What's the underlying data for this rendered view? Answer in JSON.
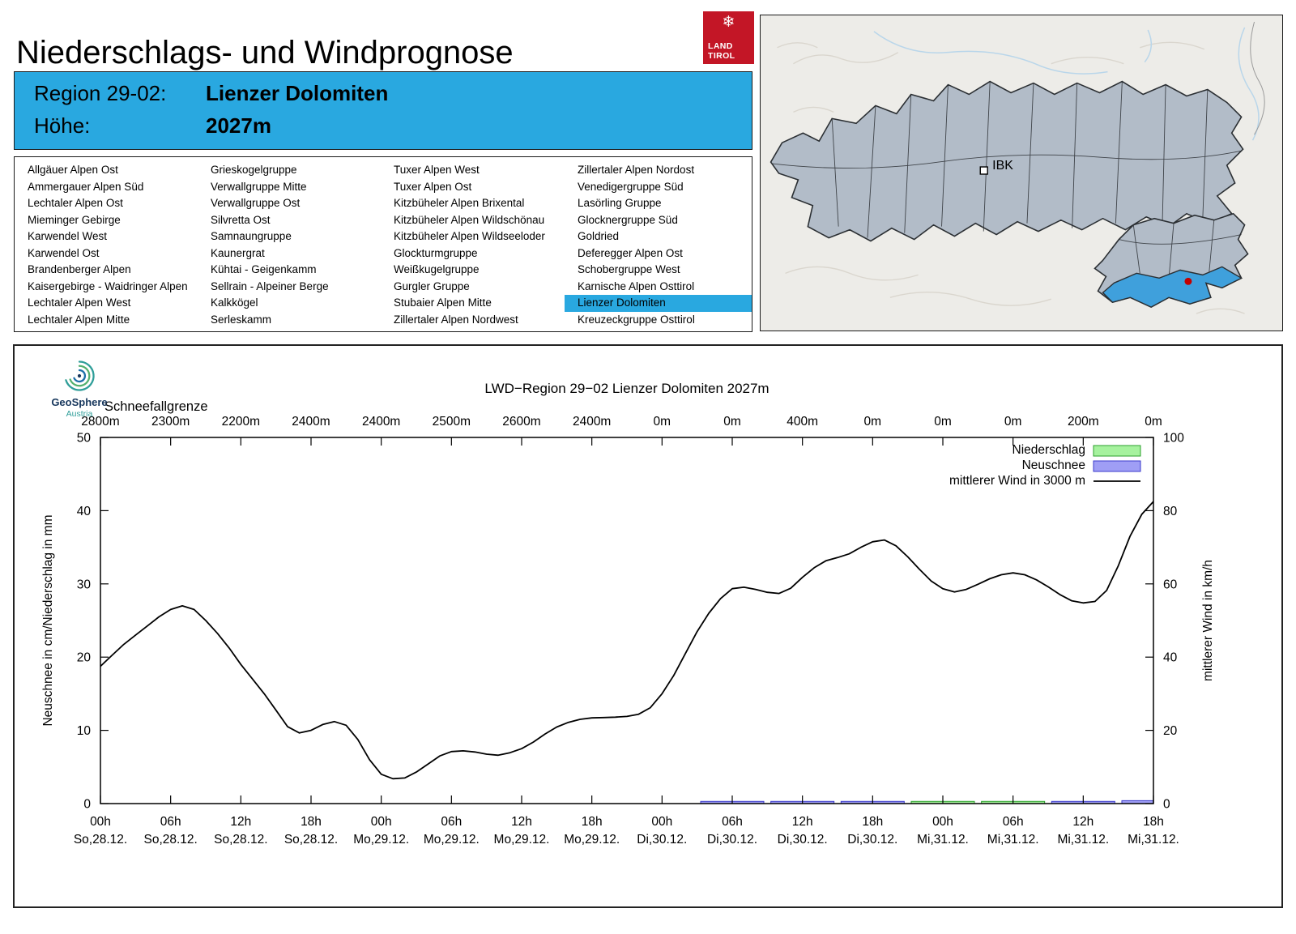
{
  "page": {
    "title": "Niederschlags- und Windprognose",
    "logo": {
      "snowflake_glyph": "❄",
      "line1": "LAND",
      "line2": "TIROL",
      "color": "#c31626"
    }
  },
  "region_banner": {
    "region_label": "Region 29-02:",
    "region_name": "Lienzer Dolomiten",
    "elevation_label": "Höhe:",
    "elevation_value": "2027m",
    "bg_color": "#29a8e0"
  },
  "region_list": {
    "selected": "Lienzer Dolomiten",
    "highlight_color": "#29a8e0",
    "columns": [
      [
        "Allgäuer Alpen Ost",
        "Ammergauer Alpen Süd",
        "Lechtaler Alpen Ost",
        "Mieminger Gebirge",
        "Karwendel West",
        "Karwendel Ost",
        "Brandenberger Alpen",
        "Kaisergebirge - Waidringer Alpen",
        "Lechtaler Alpen West",
        "Lechtaler Alpen Mitte"
      ],
      [
        "Grieskogelgruppe",
        "Verwallgruppe Mitte",
        "Verwallgruppe Ost",
        "Silvretta Ost",
        "Samnaungruppe",
        "Kaunergrat",
        "Kühtai - Geigenkamm",
        "Sellrain - Alpeiner Berge",
        "Kalkkögel",
        "Serleskamm"
      ],
      [
        "Tuxer Alpen West",
        "Tuxer Alpen Ost",
        "Kitzbüheler Alpen Brixental",
        "Kitzbüheler Alpen Wildschönau",
        "Kitzbüheler Alpen Wildseeloder",
        "Glockturmgruppe",
        "Weißkugelgruppe",
        "Gurgler Gruppe",
        "Stubaier Alpen Mitte",
        "Zillertaler Alpen Nordwest"
      ],
      [
        "Zillertaler Alpen Nordost",
        "Venedigergruppe Süd",
        "Lasörling Gruppe",
        "Glocknergruppe Süd",
        "Goldried",
        "Deferegger Alpen Ost",
        "Schobergruppe West",
        "Karnische Alpen Osttirol",
        "Lienzer Dolomiten",
        "Kreuzeckgruppe Osttirol"
      ]
    ]
  },
  "map": {
    "city_label": "IBK",
    "region_fill": "#b2bcc8",
    "highlight_fill": "#3fa0dc",
    "marker_color": "#c40000"
  },
  "geosphere": {
    "name": "GeoSphere",
    "country": "Austria"
  },
  "chart_data": {
    "type": "line",
    "title": "LWD−Region 29−02 Lienzer Dolomiten 2027m",
    "top_axis": {
      "label": "Schneefallgrenze",
      "values": [
        "2800m",
        "2300m",
        "2200m",
        "2400m",
        "2400m",
        "2500m",
        "2600m",
        "2400m",
        "0m",
        "0m",
        "400m",
        "0m",
        "0m",
        "0m",
        "200m",
        "0m"
      ]
    },
    "y_left": {
      "label": "Neuschnee in cm/Niederschlag in mm",
      "min": 0,
      "max": 50,
      "ticks": [
        0,
        10,
        20,
        30,
        40,
        50
      ]
    },
    "y_right": {
      "label": "mittlerer Wind in km/h",
      "min": 0,
      "max": 100,
      "ticks": [
        0,
        20,
        40,
        60,
        80,
        100
      ]
    },
    "x": {
      "min": 0,
      "max": 90,
      "ticks": [
        {
          "t": 0,
          "hour": "00h",
          "date": "So,28.12.",
          "snowline": "2800m"
        },
        {
          "t": 6,
          "hour": "06h",
          "date": "So,28.12.",
          "snowline": "2300m"
        },
        {
          "t": 12,
          "hour": "12h",
          "date": "So,28.12.",
          "snowline": "2200m"
        },
        {
          "t": 18,
          "hour": "18h",
          "date": "So,28.12.",
          "snowline": "2400m"
        },
        {
          "t": 24,
          "hour": "00h",
          "date": "Mo,29.12.",
          "snowline": "2400m"
        },
        {
          "t": 30,
          "hour": "06h",
          "date": "Mo,29.12.",
          "snowline": "2500m"
        },
        {
          "t": 36,
          "hour": "12h",
          "date": "Mo,29.12.",
          "snowline": "2600m"
        },
        {
          "t": 42,
          "hour": "18h",
          "date": "Mo,29.12.",
          "snowline": "2400m"
        },
        {
          "t": 48,
          "hour": "00h",
          "date": "Di,30.12.",
          "snowline": "0m"
        },
        {
          "t": 54,
          "hour": "06h",
          "date": "Di,30.12.",
          "snowline": "0m"
        },
        {
          "t": 60,
          "hour": "12h",
          "date": "Di,30.12.",
          "snowline": "400m"
        },
        {
          "t": 66,
          "hour": "18h",
          "date": "Di,30.12.",
          "snowline": "0m"
        },
        {
          "t": 72,
          "hour": "00h",
          "date": "Mi,31.12.",
          "snowline": "0m"
        },
        {
          "t": 78,
          "hour": "06h",
          "date": "Mi,31.12.",
          "snowline": "0m"
        },
        {
          "t": 84,
          "hour": "12h",
          "date": "Mi,31.12.",
          "snowline": "200m"
        },
        {
          "t": 90,
          "hour": "18h",
          "date": "Mi,31.12.",
          "snowline": "0m"
        }
      ]
    },
    "legend": [
      {
        "label": "Niederschlag",
        "type": "box",
        "fill": "#a6f29e",
        "stroke": "#2ca02c"
      },
      {
        "label": "Neuschnee",
        "type": "box",
        "fill": "#9f9ef5",
        "stroke": "#3b3bcc"
      },
      {
        "label": "mittlerer Wind in 3000 m",
        "type": "line",
        "stroke": "#000000"
      }
    ],
    "series": [
      {
        "name": "Niederschlag",
        "type": "boxes",
        "axis": "left",
        "fill": "#a6f29e",
        "stroke": "#2ca02c",
        "values": [
          0,
          0,
          0,
          0,
          0,
          0,
          0,
          0,
          0,
          0,
          0,
          0,
          0.3,
          0.3,
          0,
          0
        ]
      },
      {
        "name": "Neuschnee",
        "type": "boxes",
        "axis": "left",
        "fill": "#9f9ef5",
        "stroke": "#3b3bcc",
        "values": [
          0,
          0,
          0,
          0,
          0,
          0,
          0,
          0,
          0,
          0.3,
          0.3,
          0.3,
          0,
          0,
          0.3,
          0.4
        ]
      },
      {
        "name": "mittlerer Wind in 3000 m",
        "type": "line",
        "axis": "right",
        "stroke": "#000000",
        "points": [
          [
            0,
            37.5
          ],
          [
            1,
            40.5
          ],
          [
            2,
            43.5
          ],
          [
            3,
            46
          ],
          [
            4,
            48.5
          ],
          [
            5,
            51
          ],
          [
            6,
            53
          ],
          [
            7,
            54
          ],
          [
            8,
            53
          ],
          [
            9,
            50
          ],
          [
            10,
            46.5
          ],
          [
            11,
            42.5
          ],
          [
            12,
            38
          ],
          [
            13,
            34
          ],
          [
            14,
            30
          ],
          [
            15,
            25.5
          ],
          [
            16,
            21
          ],
          [
            17,
            19.3
          ],
          [
            18,
            20
          ],
          [
            19,
            21.6
          ],
          [
            20,
            22.4
          ],
          [
            21,
            21.4
          ],
          [
            22,
            17.5
          ],
          [
            23,
            12
          ],
          [
            24,
            8
          ],
          [
            25,
            6.8
          ],
          [
            26,
            7
          ],
          [
            27,
            8.6
          ],
          [
            28,
            10.8
          ],
          [
            29,
            13
          ],
          [
            30,
            14.2
          ],
          [
            31,
            14.4
          ],
          [
            32,
            14.1
          ],
          [
            33,
            13.5
          ],
          [
            34,
            13.2
          ],
          [
            35,
            13.9
          ],
          [
            36,
            15
          ],
          [
            37,
            16.8
          ],
          [
            38,
            19
          ],
          [
            39,
            20.9
          ],
          [
            40,
            22.2
          ],
          [
            41,
            23
          ],
          [
            42,
            23.4
          ],
          [
            43,
            23.5
          ],
          [
            44,
            23.6
          ],
          [
            45,
            23.8
          ],
          [
            46,
            24.4
          ],
          [
            47,
            26.2
          ],
          [
            48,
            30
          ],
          [
            49,
            35
          ],
          [
            50,
            41
          ],
          [
            51,
            47
          ],
          [
            52,
            52
          ],
          [
            53,
            56
          ],
          [
            54,
            58.7
          ],
          [
            55,
            59.1
          ],
          [
            56,
            58.5
          ],
          [
            57,
            57.7
          ],
          [
            58,
            57.4
          ],
          [
            59,
            58.8
          ],
          [
            60,
            61.8
          ],
          [
            61,
            64.4
          ],
          [
            62,
            66.3
          ],
          [
            63,
            67.2
          ],
          [
            64,
            68.2
          ],
          [
            65,
            70
          ],
          [
            66,
            71.5
          ],
          [
            67,
            72
          ],
          [
            68,
            70.4
          ],
          [
            69,
            67.4
          ],
          [
            70,
            64
          ],
          [
            71,
            60.8
          ],
          [
            72,
            58.7
          ],
          [
            73,
            57.8
          ],
          [
            74,
            58.5
          ],
          [
            75,
            59.9
          ],
          [
            76,
            61.4
          ],
          [
            77,
            62.5
          ],
          [
            78,
            63
          ],
          [
            79,
            62.5
          ],
          [
            80,
            61.1
          ],
          [
            81,
            59.2
          ],
          [
            82,
            57.1
          ],
          [
            83,
            55.4
          ],
          [
            84,
            54.8
          ],
          [
            85,
            55.2
          ],
          [
            86,
            58.2
          ],
          [
            87,
            65
          ],
          [
            88,
            73
          ],
          [
            89,
            79
          ],
          [
            90,
            82.5
          ]
        ]
      }
    ]
  }
}
